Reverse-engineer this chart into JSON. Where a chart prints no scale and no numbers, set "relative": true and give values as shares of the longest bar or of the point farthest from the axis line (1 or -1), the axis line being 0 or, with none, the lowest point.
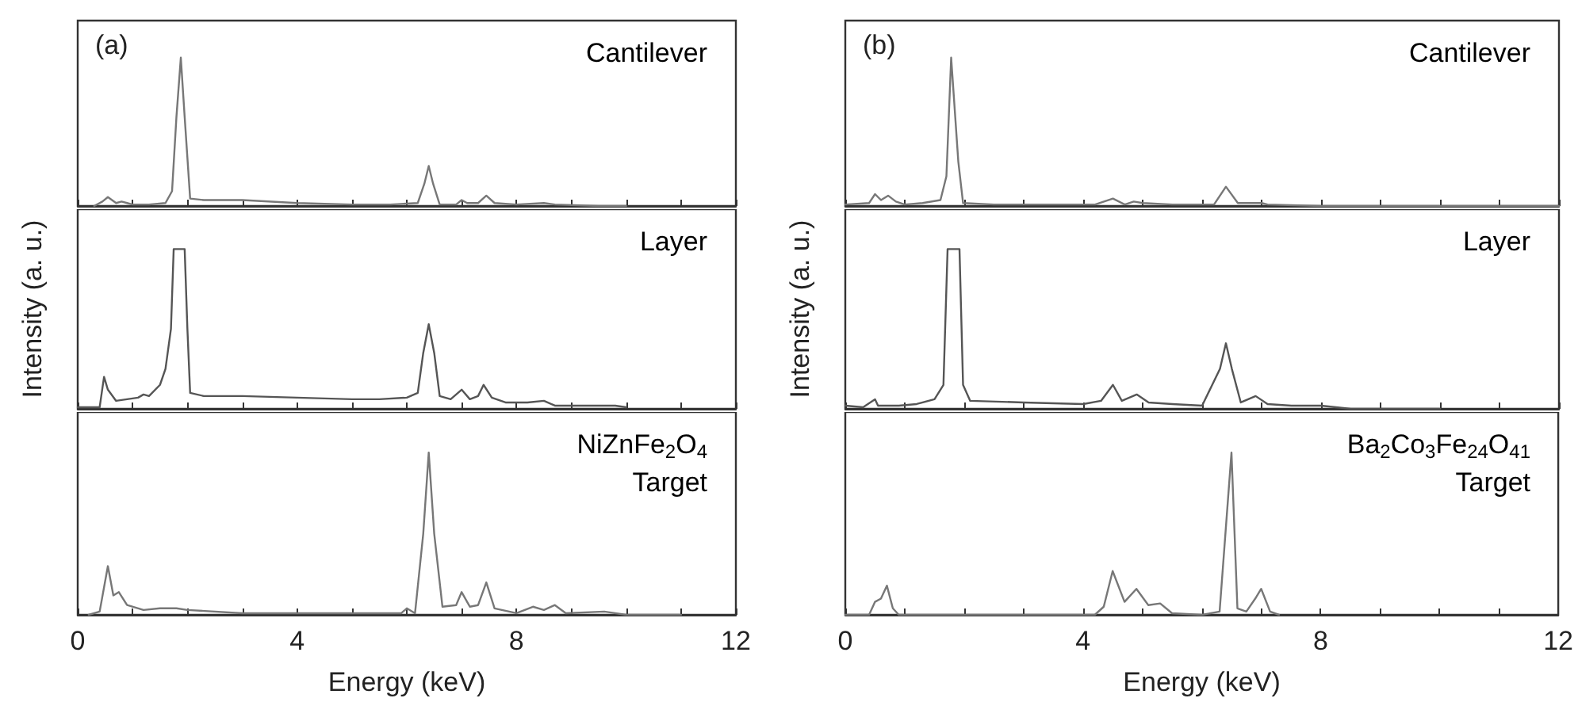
{
  "chart_data": [
    {
      "type": "line",
      "title": "(a)",
      "annotations": [
        "Cantilever"
      ],
      "relative": true,
      "xlim": [
        0,
        12
      ],
      "xticks": [
        0,
        {
          "value": 1,
          "label": null
        },
        {
          "value": 2,
          "label": null
        },
        {
          "value": 3,
          "label": null
        },
        4,
        {
          "value": 5,
          "label": null
        },
        {
          "value": 6,
          "label": null
        },
        {
          "value": 7,
          "label": null
        },
        8,
        {
          "value": 9,
          "label": null
        },
        {
          "value": 10,
          "label": null
        },
        {
          "value": 11,
          "label": null
        },
        12
      ],
      "tick_labels": false,
      "grid": false,
      "legend": false,
      "marker": "none",
      "series": [
        {
          "color": "#777777",
          "x": [
            0.3,
            0.45,
            0.55,
            0.7,
            0.8,
            0.9,
            1.0,
            1.3,
            1.6,
            1.72,
            1.8,
            1.88,
            1.95,
            2.05,
            2.3,
            3,
            4,
            5,
            5.7,
            6.2,
            6.32,
            6.4,
            6.48,
            6.6,
            6.9,
            7.0,
            7.1,
            7.3,
            7.45,
            7.6,
            8.0,
            8.5,
            8.7,
            9.5,
            10.0
          ],
          "values": [
            0.0,
            0.03,
            0.06,
            0.02,
            0.03,
            0.02,
            0.01,
            0.01,
            0.02,
            0.1,
            0.6,
            1,
            0.6,
            0.05,
            0.04,
            0.04,
            0.02,
            0.01,
            0.01,
            0.02,
            0.15,
            0.27,
            0.15,
            0.01,
            0.01,
            0.04,
            0.02,
            0.02,
            0.07,
            0.02,
            0.01,
            0.02,
            0.01,
            0.0,
            0.0
          ]
        }
      ]
    },
    {
      "type": "line",
      "ylabel": "Intensity (a. u.)",
      "annotations": [
        "Layer"
      ],
      "relative": true,
      "xlim": [
        0,
        12
      ],
      "xticks": [
        0,
        {
          "value": 1,
          "label": null
        },
        {
          "value": 2,
          "label": null
        },
        {
          "value": 3,
          "label": null
        },
        4,
        {
          "value": 5,
          "label": null
        },
        {
          "value": 6,
          "label": null
        },
        {
          "value": 7,
          "label": null
        },
        8,
        {
          "value": 9,
          "label": null
        },
        {
          "value": 10,
          "label": null
        },
        {
          "value": 11,
          "label": null
        },
        12
      ],
      "tick_labels": false,
      "grid": false,
      "legend": false,
      "marker": "none",
      "series": [
        {
          "color": "#555555",
          "x": [
            0,
            0.4,
            0.48,
            0.55,
            0.7,
            0.9,
            1.1,
            1.2,
            1.3,
            1.5,
            1.6,
            1.7,
            1.75,
            1.95,
            2.0,
            2.05,
            2.3,
            3,
            4,
            5,
            5.5,
            6.0,
            6.2,
            6.3,
            6.4,
            6.5,
            6.6,
            6.8,
            7.0,
            7.15,
            7.3,
            7.4,
            7.55,
            7.8,
            8,
            8.2,
            8.5,
            8.7,
            9.0,
            9.5,
            9.8,
            10.0
          ],
          "values": [
            0.01,
            0.01,
            0.2,
            0.12,
            0.05,
            0.06,
            0.07,
            0.09,
            0.08,
            0.15,
            0.25,
            0.5,
            1,
            1,
            0.5,
            0.1,
            0.08,
            0.08,
            0.07,
            0.06,
            0.06,
            0.07,
            0.1,
            0.35,
            0.53,
            0.35,
            0.08,
            0.06,
            0.12,
            0.06,
            0.08,
            0.15,
            0.07,
            0.04,
            0.04,
            0.04,
            0.05,
            0.02,
            0.02,
            0.02,
            0.02,
            0.01
          ]
        }
      ]
    },
    {
      "type": "line",
      "xlabel": "Energy (keV)",
      "annotations": [
        "NiZnFe$_{2}$O$_{4}$",
        "Target"
      ],
      "relative": true,
      "xlim": [
        0,
        12
      ],
      "xticks": [
        0,
        {
          "value": 1,
          "label": null
        },
        {
          "value": 2,
          "label": null
        },
        {
          "value": 3,
          "label": null
        },
        4,
        {
          "value": 5,
          "label": null
        },
        {
          "value": 6,
          "label": null
        },
        {
          "value": 7,
          "label": null
        },
        8,
        {
          "value": 9,
          "label": null
        },
        {
          "value": 10,
          "label": null
        },
        {
          "value": 11,
          "label": null
        },
        12
      ],
      "tick_labels": "x",
      "grid": false,
      "legend": false,
      "marker": "none",
      "series": [
        {
          "color": "#777777",
          "x": [
            0.2,
            0.4,
            0.55,
            0.65,
            0.75,
            0.9,
            1.2,
            1.5,
            1.8,
            2.0,
            3,
            5,
            5.9,
            6.0,
            6.15,
            6.3,
            6.4,
            6.5,
            6.65,
            6.9,
            7.0,
            7.15,
            7.3,
            7.45,
            7.6,
            8.0,
            8.3,
            8.5,
            8.7,
            8.9,
            9.6,
            10,
            11
          ],
          "values": [
            0.0,
            0.02,
            0.3,
            0.12,
            0.14,
            0.06,
            0.03,
            0.04,
            0.04,
            0.03,
            0.01,
            0.01,
            0.01,
            0.04,
            0.01,
            0.5,
            1,
            0.5,
            0.05,
            0.06,
            0.14,
            0.05,
            0.06,
            0.2,
            0.04,
            0.01,
            0.05,
            0.03,
            0.06,
            0.01,
            0.02,
            0.0,
            0.0
          ]
        }
      ]
    },
    {
      "type": "line",
      "title": "(b)",
      "annotations": [
        "Cantilever"
      ],
      "relative": true,
      "xlim": [
        0,
        12
      ],
      "xticks": [
        0,
        {
          "value": 1,
          "label": null
        },
        {
          "value": 2,
          "label": null
        },
        {
          "value": 3,
          "label": null
        },
        4,
        {
          "value": 5,
          "label": null
        },
        {
          "value": 6,
          "label": null
        },
        {
          "value": 7,
          "label": null
        },
        8,
        {
          "value": 9,
          "label": null
        },
        {
          "value": 10,
          "label": null
        },
        {
          "value": 11,
          "label": null
        },
        12
      ],
      "tick_labels": false,
      "grid": false,
      "legend": false,
      "marker": "none",
      "series": [
        {
          "color": "#777777",
          "x": [
            0,
            0.4,
            0.5,
            0.6,
            0.72,
            0.85,
            1.0,
            1.3,
            1.6,
            1.7,
            1.78,
            1.9,
            1.98,
            2.5,
            4.2,
            4.5,
            4.7,
            4.85,
            5.0,
            5.5,
            6.2,
            6.4,
            6.6,
            7.0,
            7.1,
            8,
            10,
            12
          ],
          "values": [
            0.01,
            0.02,
            0.08,
            0.04,
            0.07,
            0.03,
            0.01,
            0.02,
            0.04,
            0.2,
            1,
            0.3,
            0.02,
            0.01,
            0.01,
            0.05,
            0.01,
            0.03,
            0.02,
            0.01,
            0.01,
            0.13,
            0.02,
            0.02,
            0.01,
            0.0,
            0.0,
            0.0
          ]
        }
      ]
    },
    {
      "type": "line",
      "ylabel": "Intensity (a. u.)",
      "annotations": [
        "Layer"
      ],
      "relative": true,
      "xlim": [
        0,
        12
      ],
      "xticks": [
        0,
        {
          "value": 1,
          "label": null
        },
        {
          "value": 2,
          "label": null
        },
        {
          "value": 3,
          "label": null
        },
        4,
        {
          "value": 5,
          "label": null
        },
        {
          "value": 6,
          "label": null
        },
        {
          "value": 7,
          "label": null
        },
        8,
        {
          "value": 9,
          "label": null
        },
        {
          "value": 10,
          "label": null
        },
        {
          "value": 11,
          "label": null
        },
        12
      ],
      "tick_labels": false,
      "grid": false,
      "legend": false,
      "marker": "none",
      "series": [
        {
          "color": "#555555",
          "x": [
            0,
            0.3,
            0.5,
            0.55,
            0.9,
            1.2,
            1.5,
            1.65,
            1.72,
            1.92,
            1.98,
            2.1,
            3,
            4,
            4.3,
            4.5,
            4.65,
            4.9,
            5.1,
            5.5,
            6.0,
            6.3,
            6.4,
            6.5,
            6.65,
            6.9,
            7.1,
            7.5,
            8,
            8.5,
            10
          ],
          "values": [
            0.02,
            0.01,
            0.06,
            0.02,
            0.02,
            0.03,
            0.06,
            0.15,
            1,
            1,
            0.15,
            0.05,
            0.04,
            0.03,
            0.05,
            0.15,
            0.05,
            0.09,
            0.04,
            0.03,
            0.02,
            0.25,
            0.41,
            0.25,
            0.04,
            0.08,
            0.03,
            0.02,
            0.02,
            0.0,
            0.0
          ]
        }
      ]
    },
    {
      "type": "line",
      "xlabel": "Energy (keV)",
      "annotations": [
        "Ba$_{2}$Co$_{3}$Fe$_{24}$O$_{41}$",
        "Target"
      ],
      "relative": true,
      "xlim": [
        0,
        12
      ],
      "xticks": [
        0,
        {
          "value": 1,
          "label": null
        },
        {
          "value": 2,
          "label": null
        },
        {
          "value": 3,
          "label": null
        },
        4,
        {
          "value": 5,
          "label": null
        },
        {
          "value": 6,
          "label": null
        },
        {
          "value": 7,
          "label": null
        },
        8,
        {
          "value": 9,
          "label": null
        },
        {
          "value": 10,
          "label": null
        },
        {
          "value": 11,
          "label": null
        },
        12
      ],
      "tick_labels": "x",
      "grid": false,
      "legend": false,
      "marker": "none",
      "series": [
        {
          "color": "#777777",
          "x": [
            0,
            0.4,
            0.5,
            0.6,
            0.7,
            0.8,
            0.9,
            2,
            3,
            4.2,
            4.35,
            4.5,
            4.7,
            4.9,
            5.1,
            5.3,
            5.5,
            6.0,
            6.3,
            6.5,
            6.6,
            6.75,
            6.9,
            7.0,
            7.15,
            7.3
          ],
          "values": [
            0.0,
            0.0,
            0.08,
            0.1,
            0.18,
            0.04,
            0.0,
            0.0,
            0.0,
            0.0,
            0.05,
            0.27,
            0.08,
            0.16,
            0.06,
            0.07,
            0.01,
            0.0,
            0.02,
            1,
            0.04,
            0.02,
            0.1,
            0.16,
            0.02,
            0.0
          ]
        }
      ]
    }
  ]
}
